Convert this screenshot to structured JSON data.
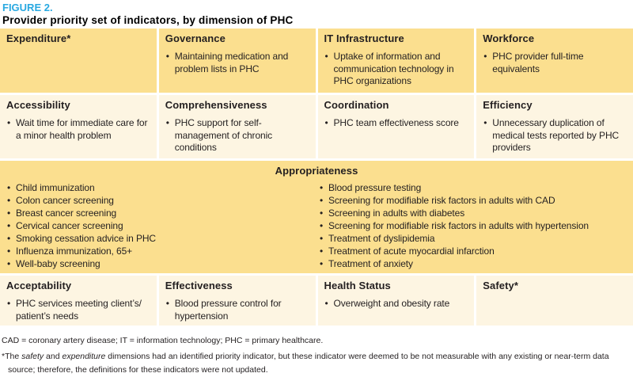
{
  "figure": {
    "label": "FIGURE 2.",
    "title": "Provider priority set of indicators, by dimension of PHC"
  },
  "colors": {
    "gold_row": "#fbdf8f",
    "cream_row": "#fdf5e2",
    "figure_label_blue": "#29a9e1",
    "text": "#231f20"
  },
  "table": {
    "row1": [
      {
        "header": "Expenditure*",
        "items": []
      },
      {
        "header": "Governance",
        "items": [
          "Maintaining medication and problem lists in PHC"
        ]
      },
      {
        "header": "IT Infrastructure",
        "items": [
          "Uptake of information and communication technology in PHC organizations"
        ]
      },
      {
        "header": "Workforce",
        "items": [
          "PHC provider full-time equivalents"
        ]
      }
    ],
    "row2": [
      {
        "header": "Accessibility",
        "items": [
          "Wait time for immediate care for a minor health problem"
        ]
      },
      {
        "header": "Comprehensiveness",
        "items": [
          "PHC support for self-management of chronic conditions"
        ]
      },
      {
        "header": "Coordination",
        "items": [
          "PHC team effectiveness score"
        ]
      },
      {
        "header": "Efficiency",
        "items": [
          "Unnecessary duplication of medical tests reported by PHC providers"
        ]
      }
    ],
    "row3": {
      "header": "Appropriateness",
      "left_items": [
        "Child immunization",
        "Colon cancer screening",
        "Breast cancer screening",
        "Cervical cancer screening",
        "Smoking cessation advice in PHC",
        "Influenza immunization, 65+",
        "Well-baby screening"
      ],
      "right_items": [
        "Blood pressure testing",
        "Screening for modifiable risk factors in adults with CAD",
        "Screening in adults with diabetes",
        "Screening for modifiable risk factors in adults with hypertension",
        "Treatment of dyslipidemia",
        "Treatment of acute myocardial infarction",
        "Treatment of anxiety"
      ]
    },
    "row4": [
      {
        "header": "Acceptability",
        "items": [
          "PHC services meeting client’s/ patient’s needs"
        ]
      },
      {
        "header": "Effectiveness",
        "items": [
          "Blood pressure control for hypertension"
        ]
      },
      {
        "header": "Health Status",
        "items": [
          "Overweight and obesity rate"
        ]
      },
      {
        "header": "Safety*",
        "items": []
      }
    ]
  },
  "footnotes": {
    "abbreviations": "CAD = coronary artery disease; IT = information technology; PHC = primary healthcare.",
    "asterisk": {
      "prefix": "*The ",
      "italic1": "safety",
      "mid": " and ",
      "italic2": "expenditure",
      "rest": " dimensions had an identified priority indicator, but these indicator were deemed to be not measurable with any existing or near-term data source; therefore, the definitions for these indicators were not updated."
    }
  }
}
